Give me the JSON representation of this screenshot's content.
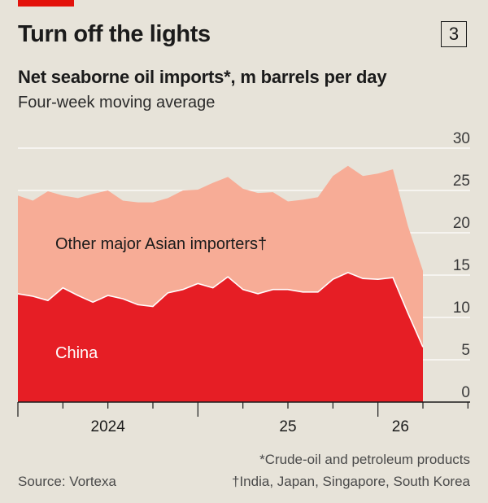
{
  "header": {
    "title": "Turn off the lights",
    "chart_number": "3",
    "subtitle": "Net seaborne oil imports*, m barrels per day",
    "subtitle2": "Four-week moving average"
  },
  "footer": {
    "source": "Source: Vortexa",
    "footnote1": "*Crude-oil and petroleum products",
    "footnote2": "†India, Japan, Singapore, South Korea"
  },
  "colors": {
    "accent_red": "#e3120b",
    "china": "#e61e25",
    "other": "#f7ac96",
    "background": "#e7e3d9",
    "grid": "#ffffff"
  },
  "chart_data": {
    "type": "area",
    "stacked": true,
    "title": "Turn off the lights",
    "subtitle": "Net seaborne oil imports*, m barrels per day",
    "ylabel": "",
    "xlabel": "",
    "ylim": [
      0,
      30
    ],
    "y_ticks": [
      "0",
      "5",
      "10",
      "15",
      "20",
      "25",
      "30"
    ],
    "y_axis_side": "right",
    "grid": true,
    "x_tick_labels": [
      "2024",
      "25",
      "26"
    ],
    "x": [
      "2024-01",
      "2024-02",
      "2024-03",
      "2024-04",
      "2024-05",
      "2024-06",
      "2024-07",
      "2024-08",
      "2024-09",
      "2024-10",
      "2024-11",
      "2024-12",
      "2025-01",
      "2025-02",
      "2025-03",
      "2025-04",
      "2025-05",
      "2025-06",
      "2025-07",
      "2025-08",
      "2025-09",
      "2025-10",
      "2025-11",
      "2025-12",
      "2026-01",
      "2026-02",
      "2026-03",
      "2026-04"
    ],
    "series": [
      {
        "name": "China",
        "color": "#e61e25",
        "values": [
          12.8,
          12.5,
          12.0,
          13.5,
          12.6,
          11.8,
          12.6,
          12.2,
          11.5,
          11.3,
          12.9,
          13.3,
          14.0,
          13.5,
          14.8,
          13.3,
          12.8,
          13.3,
          13.3,
          13.0,
          13.0,
          14.5,
          15.3,
          14.6,
          14.5,
          14.7,
          10.5,
          6.5
        ]
      },
      {
        "name": "Other major Asian importers†",
        "color": "#f7ac96",
        "values": [
          11.6,
          11.3,
          12.9,
          10.9,
          11.5,
          12.8,
          12.4,
          11.6,
          12.1,
          12.3,
          11.2,
          11.7,
          11.1,
          12.4,
          11.8,
          11.9,
          11.9,
          11.5,
          10.4,
          10.9,
          11.2,
          12.2,
          12.6,
          12.1,
          12.5,
          12.8,
          10.3,
          9.0
        ]
      }
    ],
    "annotations": [
      "Other major Asian importers†",
      "China"
    ]
  }
}
